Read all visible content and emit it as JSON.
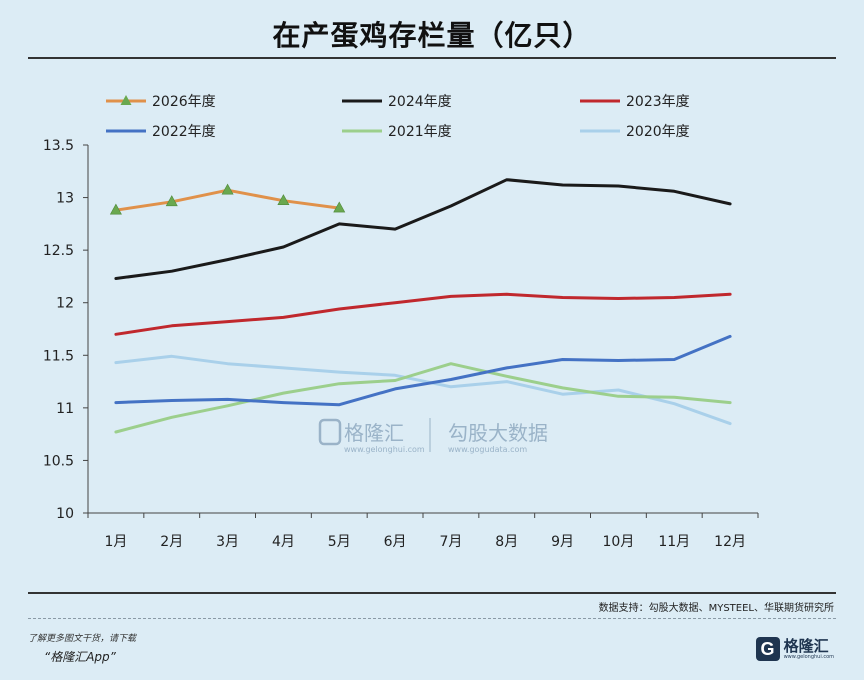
{
  "header": {
    "title": "在产蛋鸡存栏量（亿只）"
  },
  "source": "数据支持：勾股大数据、MYSTEEL、华联期货研究所",
  "footer": {
    "note": "了解更多图文干货，请下载",
    "app": "“格隆汇App”"
  },
  "brand": {
    "logo_letter": "G",
    "name": "格隆汇",
    "url": "www.gelonghui.com"
  },
  "watermark": {
    "left_name": "格隆汇",
    "left_url": "www.gelonghui.com",
    "right_name": "勾股大数据",
    "right_url": "www.gogudata.com"
  },
  "chart_data": {
    "type": "line",
    "title": "在产蛋鸡存栏量（亿只）",
    "xlabel": "",
    "ylabel": "",
    "categories": [
      "1月",
      "2月",
      "3月",
      "4月",
      "5月",
      "6月",
      "7月",
      "8月",
      "9月",
      "10月",
      "11月",
      "12月"
    ],
    "yticks": [
      "10",
      "10.5",
      "11",
      "11.5",
      "12",
      "12.5",
      "13",
      "13.5"
    ],
    "ylim": [
      10,
      13.5
    ],
    "grid": false,
    "legend": "top",
    "series": [
      {
        "name": "2026年度",
        "color": "#e0914a",
        "marker": "triangle",
        "values": [
          12.88,
          12.96,
          13.07,
          12.97,
          12.9,
          null,
          null,
          null,
          null,
          null,
          null,
          null
        ]
      },
      {
        "name": "2024年度",
        "color": "#1a1a1a",
        "marker": "none",
        "values": [
          12.23,
          12.3,
          12.41,
          12.53,
          12.75,
          12.7,
          12.92,
          13.17,
          13.12,
          13.11,
          13.06,
          12.94
        ]
      },
      {
        "name": "2023年度",
        "color": "#c0282d",
        "marker": "none",
        "values": [
          11.7,
          11.78,
          11.82,
          11.86,
          11.94,
          12.0,
          12.06,
          12.08,
          12.05,
          12.04,
          12.05,
          12.08
        ]
      },
      {
        "name": "2022年度",
        "color": "#4472c4",
        "marker": "none",
        "values": [
          11.05,
          11.07,
          11.08,
          11.05,
          11.03,
          11.18,
          11.27,
          11.38,
          11.46,
          11.45,
          11.46,
          11.68
        ]
      },
      {
        "name": "2021年度",
        "color": "#9ccf8c",
        "marker": "none",
        "values": [
          10.77,
          10.91,
          11.02,
          11.14,
          11.23,
          11.26,
          11.42,
          11.3,
          11.19,
          11.11,
          11.1,
          11.05
        ]
      },
      {
        "name": "2020年度",
        "color": "#a9d0ea",
        "marker": "none",
        "values": [
          11.43,
          11.49,
          11.42,
          11.38,
          11.34,
          11.31,
          11.2,
          11.25,
          11.13,
          11.17,
          11.04,
          10.85
        ]
      }
    ]
  }
}
